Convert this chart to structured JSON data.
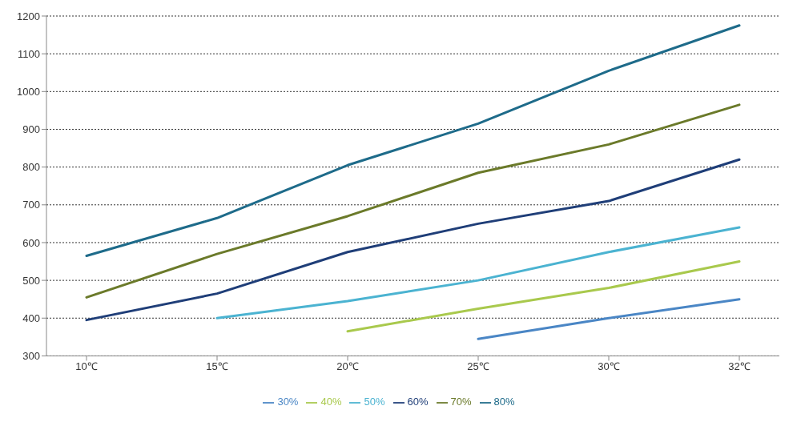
{
  "chart_data": {
    "type": "line",
    "categories": [
      "10℃",
      "15℃",
      "20℃",
      "25℃",
      "30℃",
      "32℃"
    ],
    "series": [
      {
        "name": "30%",
        "color": "#4a86c5",
        "values": [
          null,
          null,
          null,
          345,
          400,
          450
        ]
      },
      {
        "name": "40%",
        "color": "#a9c94d",
        "values": [
          null,
          null,
          365,
          425,
          480,
          550
        ]
      },
      {
        "name": "50%",
        "color": "#4bb3d1",
        "values": [
          null,
          400,
          445,
          500,
          575,
          640
        ]
      },
      {
        "name": "60%",
        "color": "#1f3e78",
        "values": [
          395,
          465,
          575,
          650,
          710,
          820
        ]
      },
      {
        "name": "70%",
        "color": "#6b7a2a",
        "values": [
          455,
          570,
          670,
          785,
          860,
          965
        ]
      },
      {
        "name": "80%",
        "color": "#1e6b8a",
        "values": [
          565,
          665,
          805,
          915,
          1055,
          1175
        ]
      }
    ],
    "ylim": [
      300,
      1200
    ],
    "yticks": [
      300,
      400,
      500,
      600,
      700,
      800,
      900,
      1000,
      1100,
      1200
    ],
    "grid": "y",
    "legend": "bottom",
    "marker": "none",
    "line_style": "solid"
  }
}
